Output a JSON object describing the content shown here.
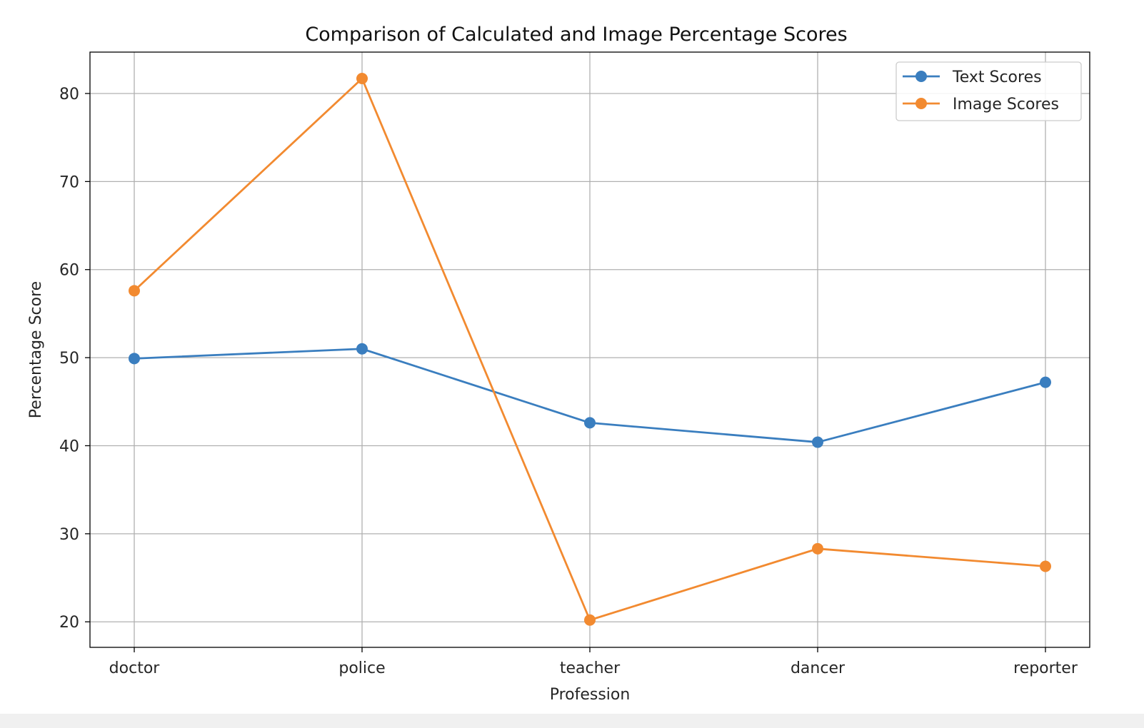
{
  "chart_data": {
    "type": "line",
    "title": "Comparison of Calculated and Image Percentage Scores",
    "xlabel": "Profession",
    "ylabel": "Percentage Score",
    "categories": [
      "doctor",
      "police",
      "teacher",
      "dancer",
      "reporter"
    ],
    "ylim": [
      17.1,
      84.7
    ],
    "yticks": [
      20,
      30,
      40,
      50,
      60,
      70,
      80
    ],
    "grid": true,
    "legend_position": "top-right",
    "series": [
      {
        "name": "Text Scores",
        "color": "#3a7ebf",
        "marker": "circle",
        "values": [
          49.9,
          51.0,
          42.6,
          40.4,
          47.2
        ]
      },
      {
        "name": "Image Scores",
        "color": "#f28a30",
        "marker": "circle",
        "values": [
          57.6,
          81.7,
          20.2,
          28.3,
          26.3
        ]
      }
    ]
  }
}
